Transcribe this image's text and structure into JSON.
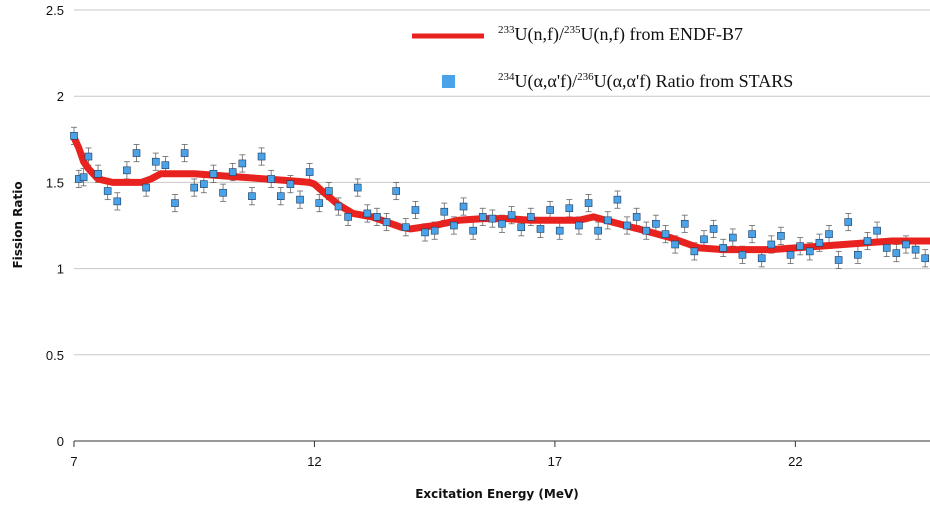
{
  "chart_data": {
    "type": "scatter",
    "xlabel": "Excitation Energy (MeV)",
    "ylabel": "Fission Ratio",
    "xlim": [
      7,
      24.8
    ],
    "ylim": [
      0,
      2.5
    ],
    "x_ticks": [
      "7",
      "12",
      "17",
      "22"
    ],
    "y_ticks": [
      "0",
      "0.5",
      "1",
      "1.5",
      "2",
      "2.5"
    ],
    "grid": "horizontal",
    "legend_position": "top-right",
    "legend": [
      {
        "series": "endf",
        "sup1": "233",
        "text1": "U(n,f)/",
        "sup2": "235",
        "text2": "U(n,f) from ENDF-B7"
      },
      {
        "series": "stars",
        "sup1": "234",
        "text1": "U(α,α'f)/",
        "sup2": "236",
        "text2": "U(α,α'f) Ratio from STARS"
      }
    ],
    "series": [
      {
        "id": "endf",
        "color": "#e8231f",
        "x": [
          7.0,
          7.1,
          7.2,
          7.3,
          7.5,
          7.8,
          8.0,
          8.4,
          8.6,
          8.8,
          9.0,
          9.5,
          10.0,
          10.5,
          11.0,
          11.5,
          11.9,
          12.0,
          12.2,
          12.5,
          12.8,
          13.2,
          13.5,
          13.8,
          14.0,
          14.5,
          15.0,
          15.5,
          16.0,
          16.5,
          17.0,
          17.5,
          17.8,
          18.2,
          18.6,
          19.0,
          19.4,
          19.8,
          20.0,
          20.5,
          21.0,
          21.5,
          22.0,
          22.5,
          23.0,
          23.5,
          24.0,
          24.8
        ],
        "y": [
          1.76,
          1.7,
          1.62,
          1.58,
          1.52,
          1.5,
          1.5,
          1.5,
          1.52,
          1.55,
          1.55,
          1.55,
          1.54,
          1.53,
          1.52,
          1.51,
          1.5,
          1.49,
          1.44,
          1.37,
          1.32,
          1.3,
          1.27,
          1.24,
          1.23,
          1.25,
          1.28,
          1.29,
          1.29,
          1.28,
          1.28,
          1.28,
          1.3,
          1.27,
          1.24,
          1.21,
          1.18,
          1.14,
          1.12,
          1.11,
          1.11,
          1.11,
          1.12,
          1.13,
          1.14,
          1.15,
          1.16,
          1.16
        ]
      },
      {
        "id": "stars",
        "color": "#4aa3e8",
        "error": 0.05,
        "x": [
          7.0,
          7.1,
          7.2,
          7.3,
          7.5,
          7.7,
          7.9,
          8.1,
          8.3,
          8.5,
          8.7,
          8.9,
          9.1,
          9.3,
          9.5,
          9.7,
          9.9,
          10.1,
          10.3,
          10.5,
          10.7,
          10.9,
          11.1,
          11.3,
          11.5,
          11.7,
          11.9,
          12.1,
          12.3,
          12.5,
          12.7,
          12.9,
          13.1,
          13.3,
          13.5,
          13.7,
          13.9,
          14.1,
          14.3,
          14.5,
          14.7,
          14.9,
          15.1,
          15.3,
          15.5,
          15.7,
          15.9,
          16.1,
          16.3,
          16.5,
          16.7,
          16.9,
          17.1,
          17.3,
          17.5,
          17.7,
          17.9,
          18.1,
          18.3,
          18.5,
          18.7,
          18.9,
          19.1,
          19.3,
          19.5,
          19.7,
          19.9,
          20.1,
          20.3,
          20.5,
          20.7,
          20.9,
          21.1,
          21.3,
          21.5,
          21.7,
          21.9,
          22.1,
          22.3,
          22.5,
          22.7,
          22.9,
          23.1,
          23.3,
          23.5,
          23.7,
          23.9,
          24.1,
          24.3,
          24.5,
          24.7
        ],
        "y": [
          1.77,
          1.52,
          1.53,
          1.65,
          1.55,
          1.45,
          1.39,
          1.57,
          1.67,
          1.47,
          1.62,
          1.6,
          1.38,
          1.67,
          1.47,
          1.49,
          1.55,
          1.44,
          1.56,
          1.61,
          1.42,
          1.65,
          1.52,
          1.42,
          1.49,
          1.4,
          1.56,
          1.38,
          1.45,
          1.36,
          1.3,
          1.47,
          1.32,
          1.3,
          1.27,
          1.45,
          1.24,
          1.34,
          1.21,
          1.22,
          1.33,
          1.25,
          1.36,
          1.22,
          1.3,
          1.29,
          1.26,
          1.31,
          1.24,
          1.3,
          1.23,
          1.34,
          1.22,
          1.35,
          1.25,
          1.38,
          1.22,
          1.28,
          1.4,
          1.25,
          1.3,
          1.22,
          1.26,
          1.2,
          1.14,
          1.26,
          1.1,
          1.17,
          1.23,
          1.12,
          1.18,
          1.08,
          1.2,
          1.06,
          1.14,
          1.19,
          1.08,
          1.13,
          1.1,
          1.15,
          1.2,
          1.05,
          1.27,
          1.08,
          1.16,
          1.22,
          1.12,
          1.09,
          1.14,
          1.11,
          1.06
        ]
      }
    ]
  }
}
